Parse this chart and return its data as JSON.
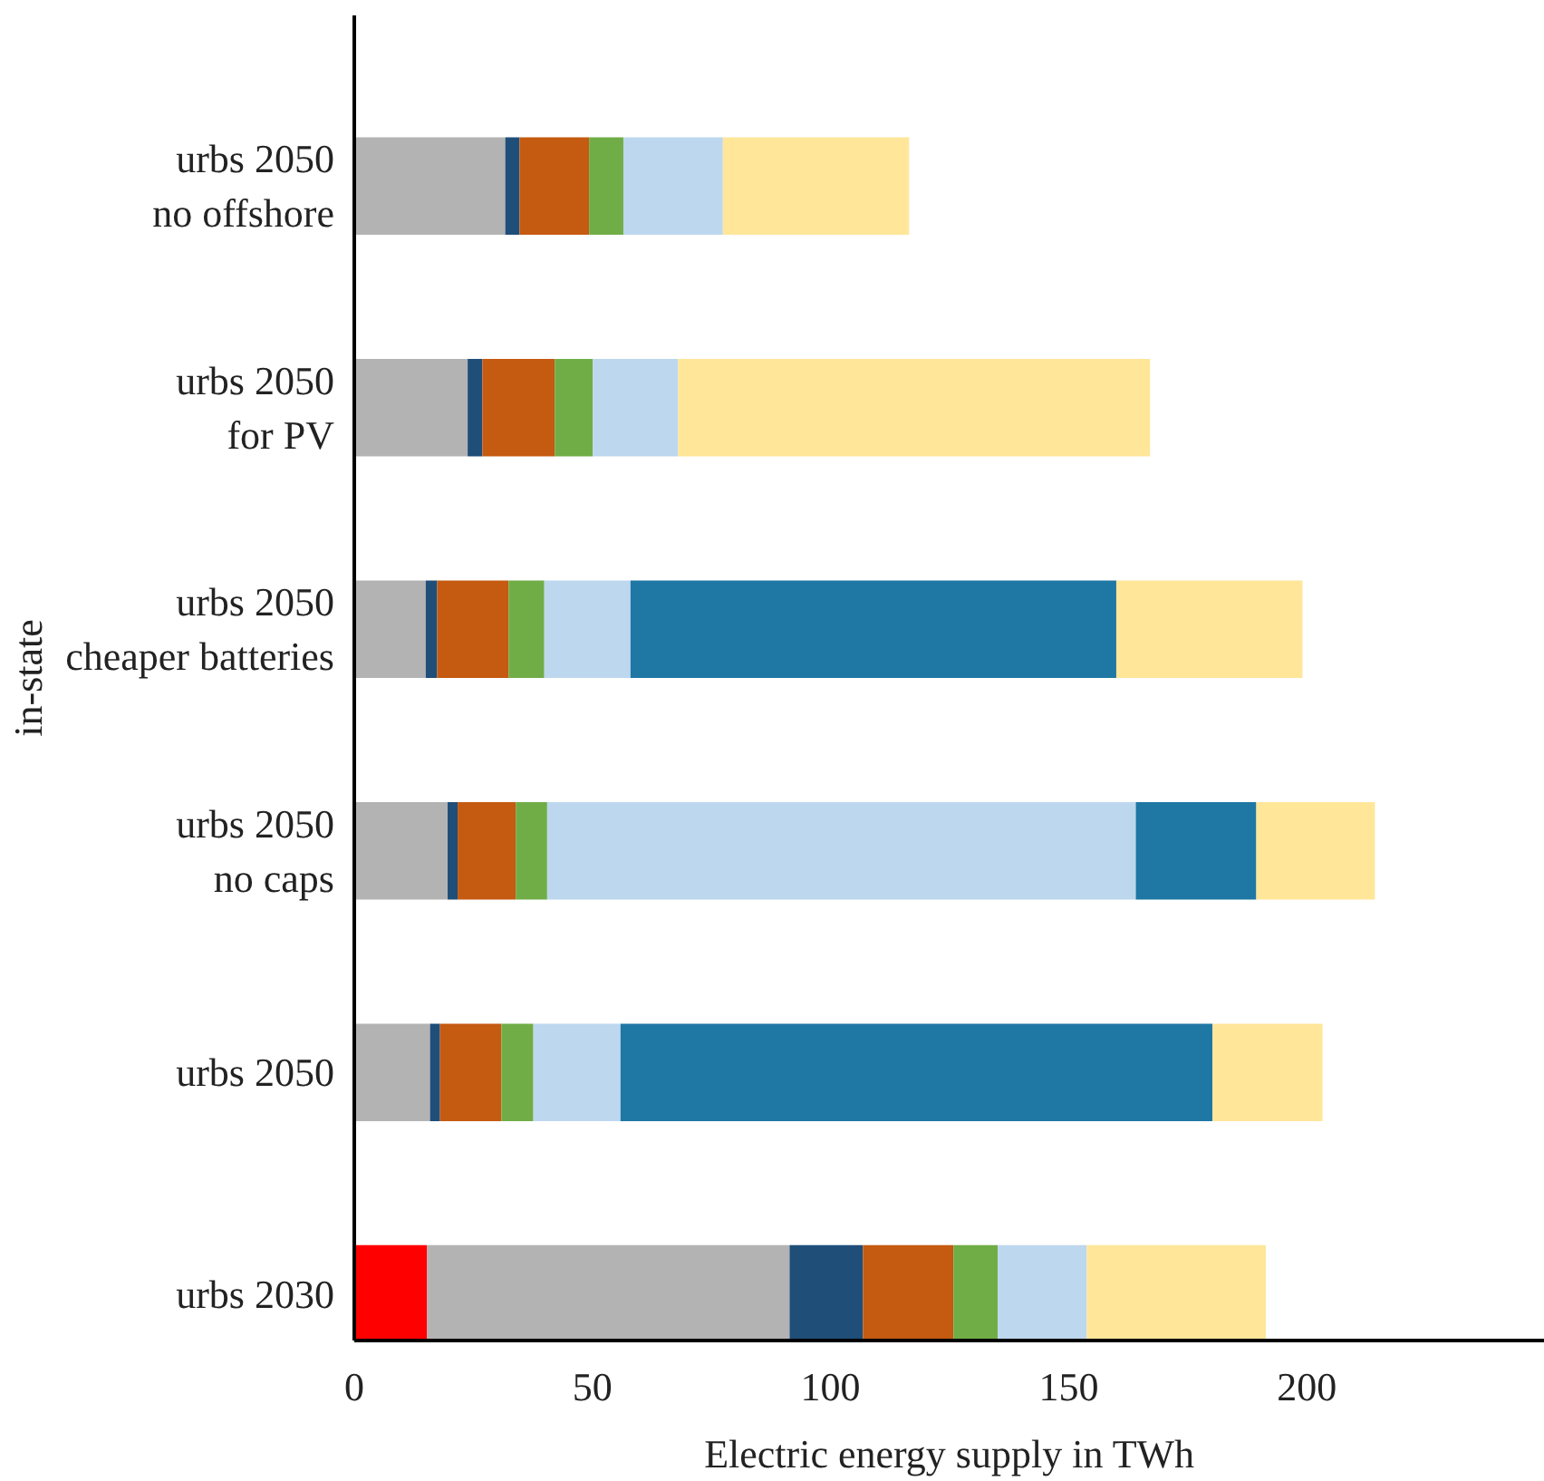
{
  "chart_data": {
    "type": "bar",
    "orientation": "horizontal",
    "stacked": true,
    "xlabel": "Electric energy supply in TWh",
    "ylabel": "in-state",
    "categories": [
      "urbs 2050\nno offshore",
      "urbs 2050\nfor PV",
      "urbs 2050\ncheaper batteries",
      "urbs 2050\nno caps",
      "urbs 2050",
      "urbs 2030"
    ],
    "series": [
      {
        "color": "#ff0000",
        "values": [
          null,
          null,
          null,
          null,
          null,
          15.3
        ]
      },
      {
        "color": "#b3b3b3",
        "values": [
          31.7,
          23.8,
          15.0,
          19.6,
          15.9,
          76.1
        ]
      },
      {
        "color": "#1f4e79",
        "values": [
          3.0,
          3.1,
          2.4,
          2.1,
          2.1,
          15.4
        ]
      },
      {
        "color": "#c55a11",
        "values": [
          14.6,
          15.2,
          15.0,
          12.2,
          12.9,
          19.0
        ]
      },
      {
        "color": "#70ad47",
        "values": [
          7.2,
          8.0,
          7.5,
          6.6,
          6.7,
          9.3
        ]
      },
      {
        "color": "#bdd7ee",
        "values": [
          20.9,
          17.9,
          18.1,
          123.6,
          18.3,
          18.7
        ]
      },
      {
        "color": "#1f77a4",
        "values": [
          null,
          null,
          102,
          25.3,
          124.3,
          null
        ]
      },
      {
        "color": "#ffe699",
        "values": [
          39.1,
          99.1,
          39.1,
          24.9,
          23.1,
          37.6
        ]
      }
    ],
    "xlim": [
      0,
      250
    ],
    "xticks": [
      0,
      50,
      100,
      150,
      200
    ],
    "grid": false
  }
}
